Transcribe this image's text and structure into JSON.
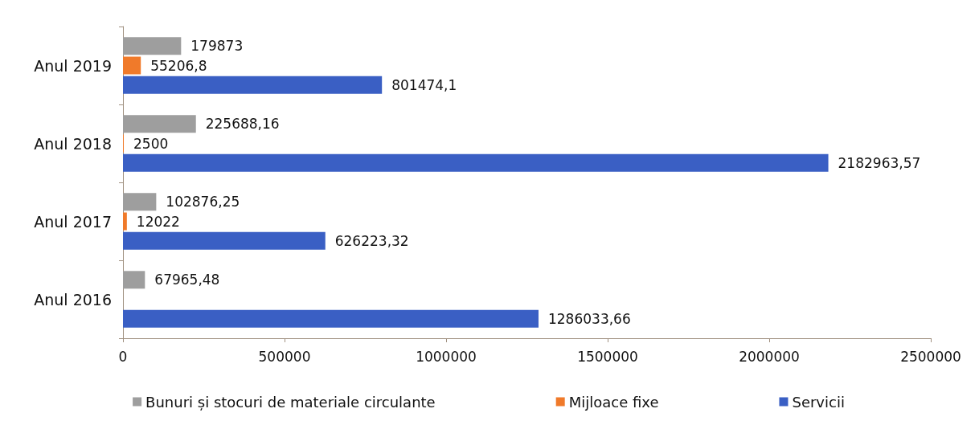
{
  "chart_data": {
    "type": "bar",
    "orientation": "horizontal",
    "categories": [
      "Anul 2019",
      "Anul 2018",
      "Anul 2017",
      "Anul 2016"
    ],
    "series": [
      {
        "name": "Bunuri și stocuri de materiale circulante",
        "color": "#9e9e9e",
        "values": [
          179873,
          225688.16,
          102876.25,
          67965.48
        ],
        "value_labels": [
          "179873",
          "225688,16",
          "102876,25",
          "67965,48"
        ]
      },
      {
        "name": "Mijloace fixe",
        "color": "#f07a2a",
        "values": [
          55206.8,
          2500,
          12022,
          null
        ],
        "value_labels": [
          "55206,8",
          "2500",
          "12022",
          null
        ]
      },
      {
        "name": "Servicii",
        "color": "#3a5fc4",
        "values": [
          801474.1,
          2182963.57,
          626223.32,
          1286033.66
        ],
        "value_labels": [
          "801474,1",
          "2182963,57",
          "626223,32",
          "1286033,66"
        ]
      }
    ],
    "xlim": [
      0,
      2500000
    ],
    "xticks": [
      0,
      500000,
      1000000,
      1500000,
      2000000,
      2500000
    ],
    "grid": false,
    "legend": "bottom"
  }
}
